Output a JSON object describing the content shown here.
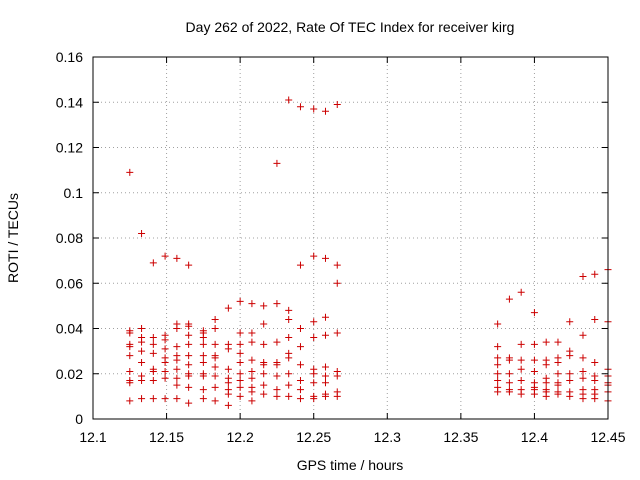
{
  "chart_data": {
    "type": "scatter",
    "title": "Day 262 of 2022, Rate Of TEC Index for receiver kirg",
    "xlabel": "GPS time / hours",
    "ylabel": "ROTI / TECUs",
    "xlim": [
      12.1,
      12.45
    ],
    "ylim": [
      0,
      0.16
    ],
    "grid": true,
    "marker": "+",
    "colors": {
      "points": "#cc0000",
      "grid": "#a0a0a0",
      "axes": "#000000"
    },
    "x_ticks": [
      "12.1",
      "12.15",
      "12.2",
      "12.25",
      "12.3",
      "12.35",
      "12.4",
      "12.45"
    ],
    "y_ticks": [
      "0",
      "0.02",
      "0.04",
      "0.06",
      "0.08",
      "0.1",
      "0.12",
      "0.14",
      "0.16"
    ],
    "series": [
      {
        "name": "ROTI",
        "points": [
          [
            12.125,
            0.109
          ],
          [
            12.125,
            0.039
          ],
          [
            12.125,
            0.038
          ],
          [
            12.125,
            0.033
          ],
          [
            12.125,
            0.032
          ],
          [
            12.125,
            0.028
          ],
          [
            12.125,
            0.021
          ],
          [
            12.125,
            0.017
          ],
          [
            12.125,
            0.016
          ],
          [
            12.125,
            0.008
          ],
          [
            12.133,
            0.082
          ],
          [
            12.133,
            0.04
          ],
          [
            12.133,
            0.036
          ],
          [
            12.133,
            0.034
          ],
          [
            12.133,
            0.03
          ],
          [
            12.133,
            0.025
          ],
          [
            12.133,
            0.019
          ],
          [
            12.133,
            0.017
          ],
          [
            12.133,
            0.009
          ],
          [
            12.141,
            0.069
          ],
          [
            12.141,
            0.036
          ],
          [
            12.141,
            0.033
          ],
          [
            12.141,
            0.029
          ],
          [
            12.141,
            0.022
          ],
          [
            12.141,
            0.021
          ],
          [
            12.141,
            0.017
          ],
          [
            12.141,
            0.009
          ],
          [
            12.149,
            0.072
          ],
          [
            12.149,
            0.037
          ],
          [
            12.149,
            0.035
          ],
          [
            12.149,
            0.031
          ],
          [
            12.149,
            0.027
          ],
          [
            12.149,
            0.025
          ],
          [
            12.149,
            0.021
          ],
          [
            12.149,
            0.018
          ],
          [
            12.149,
            0.009
          ],
          [
            12.157,
            0.071
          ],
          [
            12.157,
            0.042
          ],
          [
            12.157,
            0.04
          ],
          [
            12.157,
            0.032
          ],
          [
            12.157,
            0.028
          ],
          [
            12.157,
            0.026
          ],
          [
            12.157,
            0.022
          ],
          [
            12.157,
            0.018
          ],
          [
            12.157,
            0.015
          ],
          [
            12.157,
            0.009
          ],
          [
            12.165,
            0.068
          ],
          [
            12.165,
            0.042
          ],
          [
            12.165,
            0.041
          ],
          [
            12.165,
            0.037
          ],
          [
            12.165,
            0.033
          ],
          [
            12.165,
            0.028
          ],
          [
            12.165,
            0.024
          ],
          [
            12.165,
            0.02
          ],
          [
            12.165,
            0.019
          ],
          [
            12.165,
            0.014
          ],
          [
            12.165,
            0.007
          ],
          [
            12.175,
            0.039
          ],
          [
            12.175,
            0.038
          ],
          [
            12.175,
            0.036
          ],
          [
            12.175,
            0.033
          ],
          [
            12.175,
            0.028
          ],
          [
            12.175,
            0.025
          ],
          [
            12.175,
            0.02
          ],
          [
            12.175,
            0.019
          ],
          [
            12.175,
            0.013
          ],
          [
            12.175,
            0.009
          ],
          [
            12.183,
            0.044
          ],
          [
            12.183,
            0.04
          ],
          [
            12.183,
            0.033
          ],
          [
            12.183,
            0.028
          ],
          [
            12.183,
            0.027
          ],
          [
            12.183,
            0.023
          ],
          [
            12.183,
            0.019
          ],
          [
            12.183,
            0.014
          ],
          [
            12.183,
            0.008
          ],
          [
            12.192,
            0.049
          ],
          [
            12.192,
            0.033
          ],
          [
            12.192,
            0.031
          ],
          [
            12.192,
            0.022
          ],
          [
            12.192,
            0.018
          ],
          [
            12.192,
            0.016
          ],
          [
            12.192,
            0.013
          ],
          [
            12.192,
            0.011
          ],
          [
            12.192,
            0.006
          ],
          [
            12.2,
            0.052
          ],
          [
            12.2,
            0.038
          ],
          [
            12.2,
            0.033
          ],
          [
            12.2,
            0.029
          ],
          [
            12.2,
            0.025
          ],
          [
            12.2,
            0.02
          ],
          [
            12.2,
            0.017
          ],
          [
            12.2,
            0.014
          ],
          [
            12.2,
            0.01
          ],
          [
            12.208,
            0.051
          ],
          [
            12.208,
            0.038
          ],
          [
            12.208,
            0.034
          ],
          [
            12.208,
            0.026
          ],
          [
            12.208,
            0.021
          ],
          [
            12.208,
            0.018
          ],
          [
            12.208,
            0.014
          ],
          [
            12.208,
            0.012
          ],
          [
            12.208,
            0.008
          ],
          [
            12.216,
            0.05
          ],
          [
            12.216,
            0.042
          ],
          [
            12.216,
            0.033
          ],
          [
            12.216,
            0.025
          ],
          [
            12.216,
            0.024
          ],
          [
            12.216,
            0.02
          ],
          [
            12.216,
            0.015
          ],
          [
            12.216,
            0.011
          ],
          [
            12.225,
            0.113
          ],
          [
            12.225,
            0.051
          ],
          [
            12.225,
            0.034
          ],
          [
            12.225,
            0.025
          ],
          [
            12.225,
            0.024
          ],
          [
            12.225,
            0.019
          ],
          [
            12.225,
            0.013
          ],
          [
            12.225,
            0.01
          ],
          [
            12.233,
            0.141
          ],
          [
            12.233,
            0.048
          ],
          [
            12.233,
            0.044
          ],
          [
            12.233,
            0.036
          ],
          [
            12.233,
            0.029
          ],
          [
            12.233,
            0.027
          ],
          [
            12.233,
            0.02
          ],
          [
            12.233,
            0.015
          ],
          [
            12.233,
            0.01
          ],
          [
            12.241,
            0.138
          ],
          [
            12.241,
            0.068
          ],
          [
            12.241,
            0.04
          ],
          [
            12.241,
            0.032
          ],
          [
            12.241,
            0.024
          ],
          [
            12.241,
            0.017
          ],
          [
            12.241,
            0.013
          ],
          [
            12.241,
            0.009
          ],
          [
            12.25,
            0.137
          ],
          [
            12.25,
            0.072
          ],
          [
            12.25,
            0.043
          ],
          [
            12.25,
            0.036
          ],
          [
            12.25,
            0.022
          ],
          [
            12.25,
            0.02
          ],
          [
            12.25,
            0.016
          ],
          [
            12.25,
            0.01
          ],
          [
            12.25,
            0.009
          ],
          [
            12.258,
            0.136
          ],
          [
            12.258,
            0.071
          ],
          [
            12.258,
            0.045
          ],
          [
            12.258,
            0.037
          ],
          [
            12.258,
            0.023
          ],
          [
            12.258,
            0.019
          ],
          [
            12.258,
            0.016
          ],
          [
            12.258,
            0.011
          ],
          [
            12.258,
            0.01
          ],
          [
            12.266,
            0.139
          ],
          [
            12.266,
            0.068
          ],
          [
            12.266,
            0.06
          ],
          [
            12.266,
            0.038
          ],
          [
            12.266,
            0.021
          ],
          [
            12.266,
            0.019
          ],
          [
            12.266,
            0.012
          ],
          [
            12.266,
            0.01
          ],
          [
            12.375,
            0.042
          ],
          [
            12.375,
            0.032
          ],
          [
            12.375,
            0.027
          ],
          [
            12.375,
            0.024
          ],
          [
            12.375,
            0.02
          ],
          [
            12.375,
            0.017
          ],
          [
            12.375,
            0.014
          ],
          [
            12.375,
            0.012
          ],
          [
            12.383,
            0.053
          ],
          [
            12.383,
            0.027
          ],
          [
            12.383,
            0.026
          ],
          [
            12.383,
            0.02
          ],
          [
            12.383,
            0.016
          ],
          [
            12.383,
            0.013
          ],
          [
            12.383,
            0.012
          ],
          [
            12.391,
            0.056
          ],
          [
            12.391,
            0.033
          ],
          [
            12.391,
            0.026
          ],
          [
            12.391,
            0.022
          ],
          [
            12.391,
            0.017
          ],
          [
            12.391,
            0.013
          ],
          [
            12.391,
            0.011
          ],
          [
            12.4,
            0.047
          ],
          [
            12.4,
            0.033
          ],
          [
            12.4,
            0.026
          ],
          [
            12.4,
            0.021
          ],
          [
            12.4,
            0.016
          ],
          [
            12.4,
            0.014
          ],
          [
            12.4,
            0.013
          ],
          [
            12.4,
            0.011
          ],
          [
            12.408,
            0.034
          ],
          [
            12.408,
            0.026
          ],
          [
            12.408,
            0.024
          ],
          [
            12.408,
            0.018
          ],
          [
            12.408,
            0.016
          ],
          [
            12.408,
            0.013
          ],
          [
            12.408,
            0.012
          ],
          [
            12.408,
            0.01
          ],
          [
            12.416,
            0.034
          ],
          [
            12.416,
            0.027
          ],
          [
            12.416,
            0.025
          ],
          [
            12.416,
            0.02
          ],
          [
            12.416,
            0.016
          ],
          [
            12.416,
            0.015
          ],
          [
            12.416,
            0.012
          ],
          [
            12.416,
            0.011
          ],
          [
            12.424,
            0.043
          ],
          [
            12.424,
            0.03
          ],
          [
            12.424,
            0.028
          ],
          [
            12.424,
            0.02
          ],
          [
            12.424,
            0.017
          ],
          [
            12.424,
            0.012
          ],
          [
            12.424,
            0.01
          ],
          [
            12.433,
            0.063
          ],
          [
            12.433,
            0.037
          ],
          [
            12.433,
            0.027
          ],
          [
            12.433,
            0.021
          ],
          [
            12.433,
            0.018
          ],
          [
            12.433,
            0.013
          ],
          [
            12.433,
            0.011
          ],
          [
            12.433,
            0.009
          ],
          [
            12.441,
            0.064
          ],
          [
            12.441,
            0.044
          ],
          [
            12.441,
            0.025
          ],
          [
            12.441,
            0.019
          ],
          [
            12.441,
            0.017
          ],
          [
            12.441,
            0.013
          ],
          [
            12.441,
            0.011
          ],
          [
            12.441,
            0.009
          ],
          [
            12.45,
            0.066
          ],
          [
            12.45,
            0.043
          ],
          [
            12.45,
            0.022
          ],
          [
            12.45,
            0.019
          ],
          [
            12.45,
            0.016
          ],
          [
            12.45,
            0.015
          ],
          [
            12.45,
            0.012
          ],
          [
            12.45,
            0.008
          ]
        ]
      }
    ]
  }
}
